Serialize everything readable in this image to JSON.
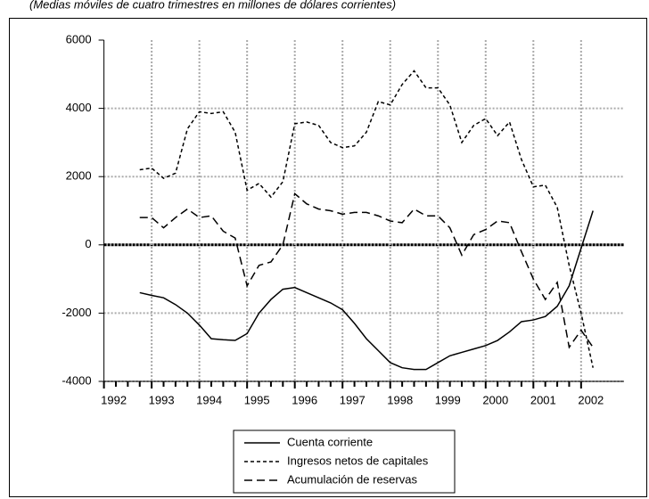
{
  "chart_data": {
    "type": "line",
    "subtitle": "(Medias móviles de cuatro trimestres en millones de dólares corrientes)",
    "x": [
      1992.75,
      1993,
      1993.25,
      1993.5,
      1993.75,
      1994,
      1994.25,
      1994.5,
      1994.75,
      1995,
      1995.25,
      1995.5,
      1995.75,
      1996,
      1996.25,
      1996.5,
      1996.75,
      1997,
      1997.25,
      1997.5,
      1997.75,
      1998,
      1998.25,
      1998.5,
      1998.75,
      1999,
      1999.25,
      1999.5,
      1999.75,
      2000,
      2000.25,
      2000.5,
      2000.75,
      2001,
      2001.25,
      2001.5,
      2001.75,
      2002,
      2002.25
    ],
    "series": [
      {
        "name": "Cuenta corriente",
        "color": "#000000",
        "dash": "solid",
        "values": [
          -1400,
          -1480,
          -1550,
          -1750,
          -2000,
          -2350,
          -2750,
          -2780,
          -2800,
          -2600,
          -2000,
          -1600,
          -1300,
          -1250,
          -1400,
          -1550,
          -1700,
          -1900,
          -2300,
          -2750,
          -3100,
          -3450,
          -3600,
          -3650,
          -3650,
          -3450,
          -3250,
          -3150,
          -3050,
          -2950,
          -2800,
          -2550,
          -2250,
          -2200,
          -2100,
          -1800,
          -1200,
          -100,
          1000
        ]
      },
      {
        "name": "Ingresos netos de capitales",
        "color": "#000000",
        "dash": "short",
        "values": [
          2200,
          2250,
          1950,
          2100,
          3400,
          3900,
          3850,
          3900,
          3300,
          1600,
          1800,
          1400,
          1850,
          3550,
          3600,
          3500,
          3000,
          2850,
          2900,
          3300,
          4200,
          4100,
          4700,
          5100,
          4600,
          4600,
          4100,
          3000,
          3500,
          3700,
          3200,
          3600,
          2500,
          1700,
          1750,
          1100,
          -600,
          -2000,
          -3600
        ]
      },
      {
        "name": "Acumulación de reservas",
        "color": "#000000",
        "dash": "long",
        "values": [
          800,
          800,
          500,
          800,
          1050,
          800,
          850,
          400,
          200,
          -1200,
          -600,
          -500,
          0,
          1500,
          1200,
          1050,
          1000,
          900,
          950,
          950,
          850,
          700,
          650,
          1050,
          850,
          850,
          500,
          -300,
          300,
          450,
          700,
          650,
          -200,
          -1000,
          -1600,
          -1100,
          -3000,
          -2500,
          -3000
        ]
      }
    ],
    "xlim": [
      1992,
      2002.9
    ],
    "xticks": [
      1992,
      1993,
      1994,
      1995,
      1996,
      1997,
      1998,
      1999,
      2000,
      2001,
      2002
    ],
    "ylim": [
      -4000,
      6000
    ],
    "yticks": [
      -4000,
      -2000,
      0,
      2000,
      4000,
      6000
    ],
    "grid": true,
    "legend": "bottom"
  }
}
